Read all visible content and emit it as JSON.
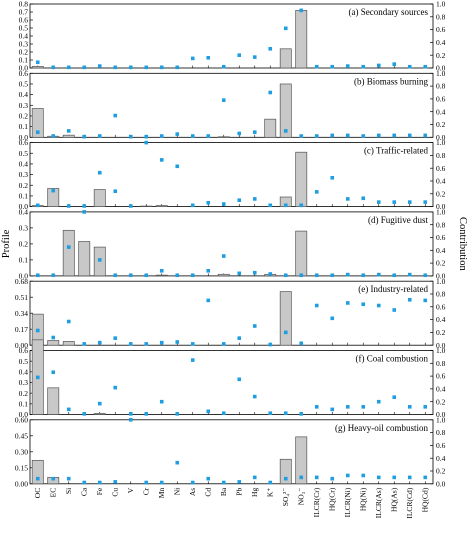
{
  "chart_data": {
    "type": "bar",
    "ylabel_left": "Profile",
    "ylabel_right": "Contribution",
    "categories": [
      "OC",
      "EC",
      "Si",
      "Ca",
      "Fe",
      "Cu",
      "V",
      "Cr",
      "Mn",
      "Ni",
      "As",
      "Cd",
      "Ba",
      "Pb",
      "Hg",
      "K⁺",
      "SO₄²⁻",
      "NO₃⁻",
      "ILCR(Cr)",
      "HQ(Cr)",
      "ILCR(Ni)",
      "HQ(Ni)",
      "ILCR(As)",
      "HQ(As)",
      "ILCR(Cd)",
      "HQ(Cd)"
    ],
    "right_axis": {
      "ylim": [
        0,
        1.0
      ],
      "ticks": [
        "0.0",
        "0.2",
        "0.4",
        "0.6",
        "0.8",
        "1.0"
      ]
    },
    "panels": [
      {
        "title": "(a) Secondary sources",
        "ylim": [
          0,
          0.8
        ],
        "left_ticks": [
          "0.0",
          "0.1",
          "0.2",
          "0.3",
          "0.4",
          "0.5",
          "0.6",
          "0.7",
          "0.8"
        ],
        "profile": [
          0.02,
          0,
          0,
          0,
          0,
          0,
          0,
          0,
          0,
          0,
          0,
          0,
          0,
          0,
          0,
          0,
          0.24,
          0.72,
          0,
          0,
          0,
          0,
          0,
          0,
          0,
          0
        ],
        "contribution": [
          0.09,
          0.01,
          0.01,
          0.01,
          0.03,
          0.01,
          0.01,
          0.01,
          0.01,
          0.01,
          0.15,
          0.16,
          0.02,
          0.2,
          0.17,
          0.3,
          0.62,
          0.9,
          0.02,
          0.02,
          0.03,
          0.02,
          0.04,
          0.06,
          0.02,
          0.02
        ]
      },
      {
        "title": "(b) Biomass burning",
        "ylim": [
          0,
          0.6
        ],
        "left_ticks": [
          "0.0",
          "0.1",
          "0.2",
          "0.3",
          "0.4",
          "0.5",
          "0.6"
        ],
        "profile": [
          0.27,
          0.01,
          0.02,
          0,
          0,
          0,
          0,
          0,
          0,
          0,
          0,
          0,
          0.005,
          0,
          0,
          0.17,
          0.5,
          0,
          0,
          0,
          0,
          0,
          0,
          0,
          0,
          0
        ],
        "contribution": [
          0.08,
          0.02,
          0.1,
          0.01,
          0.02,
          0.34,
          0.01,
          0.01,
          0.02,
          0.05,
          0.02,
          0.02,
          0.58,
          0.06,
          0.08,
          0.7,
          0.1,
          0.02,
          0.02,
          0.03,
          0.03,
          0.02,
          0.03,
          0.03,
          0.03,
          0.03
        ]
      },
      {
        "title": "(c) Traffic-related",
        "ylim": [
          0,
          0.6
        ],
        "left_ticks": [
          "0.0",
          "0.1",
          "0.2",
          "0.3",
          "0.4",
          "0.5",
          "0.6"
        ],
        "profile": [
          0.01,
          0.17,
          0,
          0,
          0.16,
          0,
          0,
          0.005,
          0.01,
          0,
          0,
          0,
          0,
          0,
          0,
          0,
          0.09,
          0.51,
          0,
          0,
          0,
          0,
          0,
          0,
          0,
          0
        ],
        "contribution": [
          0.02,
          0.25,
          0.01,
          0.01,
          0.53,
          0.24,
          0.01,
          1.0,
          0.73,
          0.63,
          0.02,
          0.06,
          0.04,
          0.1,
          0.12,
          0.02,
          0.02,
          0.02,
          0.23,
          0.45,
          0.12,
          0.13,
          0.07,
          0.07,
          0.07,
          0.07
        ]
      },
      {
        "title": "(d) Fugitive dust",
        "ylim": [
          0,
          0.4
        ],
        "left_ticks": [
          "0.0",
          "0.1",
          "0.2",
          "0.3",
          "0.4"
        ],
        "profile": [
          0,
          0,
          0.285,
          0.215,
          0.18,
          0,
          0,
          0,
          0.005,
          0,
          0,
          0,
          0.01,
          0,
          0,
          0.01,
          0,
          0.28,
          0,
          0,
          0,
          0,
          0,
          0,
          0,
          0
        ],
        "contribution": [
          0.01,
          0.01,
          0.45,
          1.0,
          0.25,
          0.01,
          0.01,
          0.01,
          0.08,
          0.01,
          0.01,
          0.08,
          0.31,
          0.04,
          0.05,
          0.03,
          0.01,
          0.01,
          0.01,
          0.01,
          0.02,
          0.01,
          0.02,
          0.01,
          0.02,
          0.01
        ]
      },
      {
        "title": "(e) Industry-related",
        "ylim": [
          0,
          0.68
        ],
        "left_ticks": [
          "0.00",
          "0.17",
          "0.34",
          "0.51",
          "0.68"
        ],
        "profile": [
          0.33,
          0.05,
          0.04,
          0,
          0,
          0,
          0,
          0,
          0,
          0,
          0,
          0,
          0,
          0,
          0,
          0,
          0.57,
          0,
          0,
          0,
          0,
          0,
          0,
          0,
          0,
          0
        ],
        "contribution": [
          0.23,
          0.12,
          0.37,
          0.02,
          0.04,
          0.11,
          0.02,
          0.02,
          0.04,
          0.05,
          0.02,
          0.7,
          0.02,
          0.11,
          0.3,
          0.01,
          0.2,
          0.03,
          0.62,
          0.42,
          0.66,
          0.64,
          0.62,
          0.55,
          0.71,
          0.7
        ]
      },
      {
        "title": "(f) Coal combustion",
        "ylim": [
          0,
          0.6
        ],
        "left_ticks": [
          "0.0",
          "0.1",
          "0.2",
          "0.3",
          "0.4",
          "0.5",
          "0.6"
        ],
        "profile": [
          0.7,
          0.25,
          0,
          0,
          0.01,
          0,
          0,
          0,
          0,
          0,
          0,
          0,
          0,
          0,
          0,
          0,
          0,
          0,
          0,
          0,
          0,
          0,
          0,
          0,
          0,
          0
        ],
        "contribution": [
          0.58,
          0.66,
          0.08,
          0.01,
          0.17,
          0.42,
          0.01,
          0.01,
          0.2,
          0.01,
          0.85,
          0.05,
          0.02,
          0.55,
          0.28,
          0.02,
          0.02,
          0.01,
          0.12,
          0.08,
          0.12,
          0.12,
          0.2,
          0.27,
          0.12,
          0.12
        ]
      },
      {
        "title": "(g) Heavy-oil combustion",
        "ylim": [
          0,
          0.6
        ],
        "left_ticks": [
          "0.00",
          "0.15",
          "0.30",
          "0.45",
          "0.60"
        ],
        "profile": [
          0.22,
          0.06,
          0,
          0,
          0,
          0,
          0,
          0,
          0,
          0,
          0,
          0,
          0,
          0,
          0,
          0,
          0.23,
          0.44,
          0,
          0,
          0,
          0,
          0,
          0,
          0,
          0
        ],
        "contribution": [
          0.08,
          0.08,
          0.08,
          0.02,
          0.02,
          0.03,
          1.0,
          0.02,
          0.02,
          0.33,
          0.02,
          0.08,
          0.02,
          0.03,
          0.1,
          0.02,
          0.08,
          0.1,
          0.1,
          0.08,
          0.13,
          0.13,
          0.1,
          0.1,
          0.1,
          0.1
        ]
      }
    ],
    "colors": {
      "bar_fill": "#c8c8c8",
      "bar_stroke": "#555555",
      "marker": "#1e9ee0"
    }
  }
}
